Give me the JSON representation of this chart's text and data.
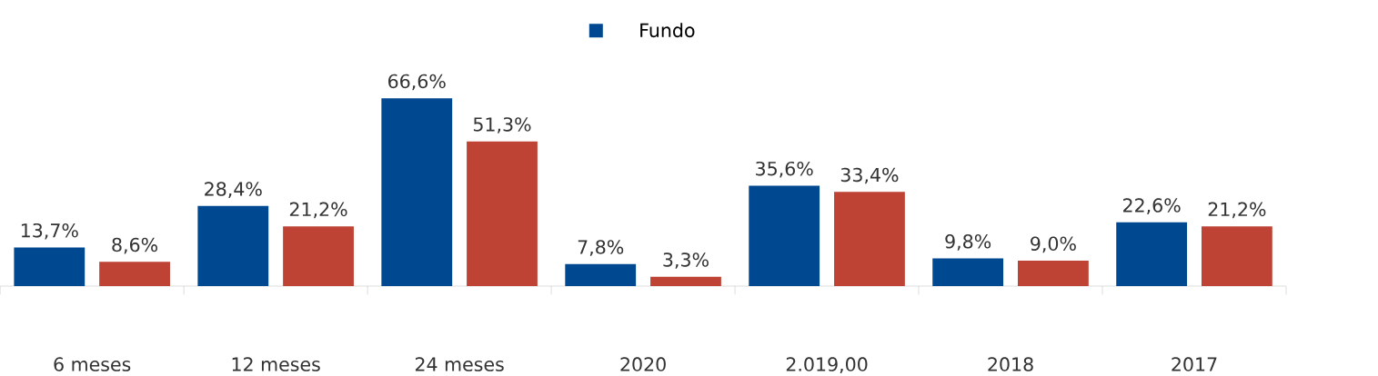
{
  "chart_data": {
    "type": "bar",
    "categories": [
      "6 meses",
      "12 meses",
      "24 meses",
      "2020",
      "2.019,00",
      "2018",
      "2017"
    ],
    "series": [
      {
        "name": "Fundo",
        "color": "#004990",
        "values": [
          13.7,
          28.4,
          66.6,
          7.8,
          35.6,
          9.8,
          22.6
        ],
        "value_labels": [
          "13,7%",
          "28,4%",
          "66,6%",
          "7,8%",
          "35,6%",
          "9,8%",
          "22,6%"
        ]
      },
      {
        "color": "#be4334",
        "values": [
          8.6,
          21.2,
          51.3,
          3.3,
          33.4,
          9.0,
          21.2
        ],
        "value_labels": [
          "8,6%",
          "21,2%",
          "51,3%",
          "3,3%",
          "33,4%",
          "9,0%",
          "21,2%"
        ]
      }
    ],
    "legend": "top",
    "tick_labels": "x"
  }
}
